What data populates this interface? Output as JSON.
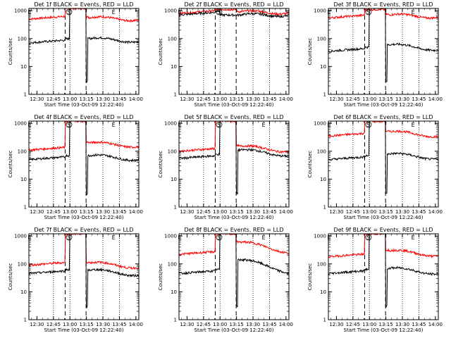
{
  "chart_data": [
    {
      "type": "line",
      "title": "Det 1f BLACK = Events, RED = LLD",
      "xlabel": "Start Time (03-Oct-09 12:22:40)",
      "ylabel": "Counts/sec",
      "x_ticks": [
        "12:30",
        "12:45",
        "13:00",
        "13:15",
        "13:30",
        "13:45",
        "14:00"
      ],
      "y_ticks": [
        "1",
        "10",
        "100",
        "1000"
      ],
      "ylim": [
        1,
        1200
      ],
      "y_scale": "log",
      "markers": [
        "E",
        "S",
        "E"
      ],
      "series": [
        {
          "color": "#ff0000",
          "pre": 500,
          "peak": 1200,
          "post": 560,
          "end": 480
        },
        {
          "color": "#000000",
          "pre": 70,
          "dip": 3,
          "post": 100,
          "end": 80
        }
      ]
    },
    {
      "type": "line",
      "title": "Det 2f BLACK = Events, RED = LLD",
      "xlabel": "Start Time (03-Oct-09 12:22:40)",
      "ylabel": "Counts/sec",
      "x_ticks": [
        "12:30",
        "12:45",
        "13:00",
        "13:15",
        "13:30",
        "13:45",
        "14:00"
      ],
      "y_ticks": [
        "1",
        "10",
        "100",
        "1000"
      ],
      "ylim": [
        1,
        1200
      ],
      "y_scale": "log",
      "markers": [
        "E",
        "S",
        "E"
      ],
      "series": [
        {
          "color": "#ff0000",
          "pre": 800,
          "peak": 1100,
          "post": 900,
          "end": 850
        },
        {
          "color": "#000000",
          "pre": 700,
          "dip": 700,
          "post": 700,
          "end": 700
        }
      ]
    },
    {
      "type": "line",
      "title": "Det 3f BLACK = Events, RED = LLD",
      "xlabel": "Start Time (03-Oct-09 12:22:40)",
      "ylabel": "Counts/sec",
      "x_ticks": [
        "12:30",
        "12:45",
        "13:00",
        "13:15",
        "13:30",
        "13:45",
        "14:00"
      ],
      "y_ticks": [
        "1",
        "10",
        "100",
        "1000"
      ],
      "ylim": [
        1,
        1200
      ],
      "y_scale": "log",
      "markers": [
        "E",
        "S",
        "E"
      ],
      "series": [
        {
          "color": "#ff0000",
          "pre": 550,
          "peak": 1100,
          "post": 700,
          "end": 600
        },
        {
          "color": "#000000",
          "pre": 35,
          "dip": 3,
          "post": 60,
          "end": 40
        }
      ]
    },
    {
      "type": "line",
      "title": "Det 4f BLACK = Events, RED = LLD",
      "xlabel": "Start Time (03-Oct-09 12:22:40)",
      "ylabel": "Counts/sec",
      "x_ticks": [
        "12:30",
        "12:45",
        "13:00",
        "13:15",
        "13:30",
        "13:45",
        "14:00"
      ],
      "y_ticks": [
        "1",
        "10",
        "100",
        "1000"
      ],
      "ylim": [
        1,
        1200
      ],
      "y_scale": "log",
      "markers": [
        "E",
        "S",
        "E"
      ],
      "series": [
        {
          "color": "#ff0000",
          "pre": 110,
          "peak": 1200,
          "post": 200,
          "end": 150
        },
        {
          "color": "#000000",
          "pre": 50,
          "dip": 3,
          "post": 70,
          "end": 50
        }
      ]
    },
    {
      "type": "line",
      "title": "Det 5f BLACK = Events, RED = LLD",
      "xlabel": "Start Time (03-Oct-09 12:22:40)",
      "ylabel": "Counts/sec",
      "x_ticks": [
        "12:30",
        "12:45",
        "13:00",
        "13:15",
        "13:30",
        "13:45",
        "14:00"
      ],
      "y_ticks": [
        "1",
        "10",
        "100",
        "1000"
      ],
      "ylim": [
        1,
        1200
      ],
      "y_scale": "log",
      "markers": [
        "E",
        "S",
        "E"
      ],
      "series": [
        {
          "color": "#ff0000",
          "pre": 100,
          "peak": 1200,
          "post": 150,
          "end": 100
        },
        {
          "color": "#000000",
          "pre": 55,
          "dip": 3,
          "post": 110,
          "end": 70
        }
      ]
    },
    {
      "type": "line",
      "title": "Det 6f BLACK = Events, RED = LLD",
      "xlabel": "Start Time (03-Oct-09 12:22:40)",
      "ylabel": "Counts/sec",
      "x_ticks": [
        "12:30",
        "12:45",
        "13:00",
        "13:15",
        "13:30",
        "13:45",
        "14:00"
      ],
      "y_ticks": [
        "1",
        "10",
        "100",
        "1000"
      ],
      "ylim": [
        1,
        1200
      ],
      "y_scale": "log",
      "markers": [
        "E",
        "S",
        "E"
      ],
      "series": [
        {
          "color": "#ff0000",
          "pre": 350,
          "peak": 1200,
          "post": 500,
          "end": 350
        },
        {
          "color": "#000000",
          "pre": 50,
          "dip": 3,
          "post": 80,
          "end": 55
        }
      ]
    },
    {
      "type": "line",
      "title": "Det 7f BLACK = Events, RED = LLD",
      "xlabel": "Start Time (03-Oct-09 12:22:40)",
      "ylabel": "Counts/sec",
      "x_ticks": [
        "12:30",
        "12:45",
        "13:00",
        "13:15",
        "13:30",
        "13:45",
        "14:00"
      ],
      "y_ticks": [
        "1",
        "10",
        "100",
        "1000"
      ],
      "ylim": [
        1,
        1200
      ],
      "y_scale": "log",
      "markers": [
        "E",
        "S",
        "E"
      ],
      "series": [
        {
          "color": "#ff0000",
          "pre": 90,
          "peak": 1200,
          "post": 110,
          "end": 75
        },
        {
          "color": "#000000",
          "pre": 45,
          "dip": 3,
          "post": 60,
          "end": 40
        }
      ]
    },
    {
      "type": "line",
      "title": "Det 8f BLACK = Events, RED = LLD",
      "xlabel": "Start Time (03-Oct-09 12:22:40)",
      "ylabel": "Counts/sec",
      "x_ticks": [
        "12:30",
        "12:45",
        "13:00",
        "13:15",
        "13:30",
        "13:45",
        "14:00"
      ],
      "y_ticks": [
        "1",
        "10",
        "100",
        "1000"
      ],
      "ylim": [
        1,
        1200
      ],
      "y_scale": "log",
      "markers": [
        "E",
        "S",
        "E"
      ],
      "series": [
        {
          "color": "#ff0000",
          "pre": 220,
          "peak": 1200,
          "post": 600,
          "end": 250
        },
        {
          "color": "#000000",
          "pre": 45,
          "dip": 3,
          "post": 140,
          "end": 45
        }
      ]
    },
    {
      "type": "line",
      "title": "Det 9f BLACK = Events, RED = LLD",
      "xlabel": "Start Time (03-Oct-09 12:22:40)",
      "ylabel": "Counts/sec",
      "x_ticks": [
        "12:30",
        "12:45",
        "13:00",
        "13:15",
        "13:30",
        "13:45",
        "14:00"
      ],
      "y_ticks": [
        "1",
        "10",
        "100",
        "1000"
      ],
      "ylim": [
        1,
        1200
      ],
      "y_scale": "log",
      "markers": [
        "E",
        "S",
        "E"
      ],
      "series": [
        {
          "color": "#ff0000",
          "pre": 180,
          "peak": 1200,
          "post": 300,
          "end": 200
        },
        {
          "color": "#000000",
          "pre": 45,
          "dip": 3,
          "post": 70,
          "end": 45
        }
      ]
    }
  ]
}
